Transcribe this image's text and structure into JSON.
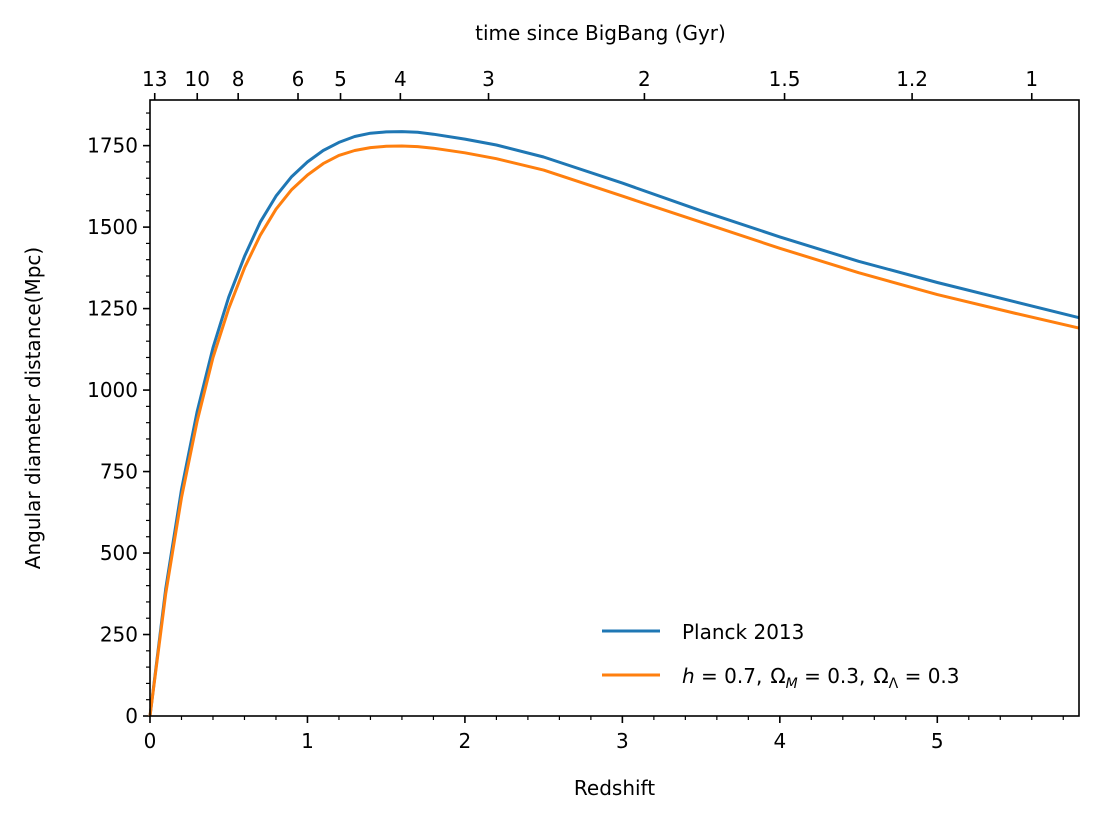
{
  "chart_data": {
    "type": "line",
    "title": "",
    "xlabel": "Redshift",
    "ylabel": "Angular diameter distance(Mpc)",
    "top_xlabel": "time since BigBang (Gyr)",
    "xlim": [
      0,
      5.9
    ],
    "ylim": [
      0,
      1890
    ],
    "x_ticks": [
      0,
      1,
      2,
      3,
      4,
      5
    ],
    "y_ticks": [
      0,
      250,
      500,
      750,
      1000,
      1250,
      1500,
      1750
    ],
    "top_ticks": [
      {
        "label": "13",
        "z": 0.03
      },
      {
        "label": "10",
        "z": 0.3
      },
      {
        "label": "8",
        "z": 0.56
      },
      {
        "label": "6",
        "z": 0.94
      },
      {
        "label": "5",
        "z": 1.21
      },
      {
        "label": "4",
        "z": 1.59
      },
      {
        "label": "3",
        "z": 2.15
      },
      {
        "label": "2",
        "z": 3.14
      },
      {
        "label": "1.5",
        "z": 4.03
      },
      {
        "label": "1.2",
        "z": 4.84
      },
      {
        "label": "1",
        "z": 5.6
      }
    ],
    "legend_position": "lower-right",
    "series": [
      {
        "name": "Planck 2013",
        "color": "#1f77b4",
        "x": [
          0,
          0.1,
          0.2,
          0.3,
          0.4,
          0.5,
          0.6,
          0.7,
          0.8,
          0.9,
          1.0,
          1.1,
          1.2,
          1.3,
          1.4,
          1.5,
          1.6,
          1.7,
          1.8,
          2.0,
          2.2,
          2.5,
          3.0,
          3.5,
          4.0,
          4.5,
          5.0,
          5.5,
          5.9
        ],
        "y": [
          0,
          390,
          695,
          935,
          1130,
          1285,
          1410,
          1515,
          1595,
          1655,
          1700,
          1735,
          1760,
          1778,
          1788,
          1792,
          1793,
          1791,
          1785,
          1770,
          1752,
          1715,
          1635,
          1550,
          1470,
          1395,
          1330,
          1270,
          1222
        ]
      },
      {
        "name": "$h=0.7,\\ \\Omega_M=0.3,\\ \\Omega_\\Lambda=0.3$",
        "color": "#ff7f0e",
        "x": [
          0,
          0.1,
          0.2,
          0.3,
          0.4,
          0.5,
          0.6,
          0.7,
          0.8,
          0.9,
          1.0,
          1.1,
          1.2,
          1.3,
          1.4,
          1.5,
          1.6,
          1.7,
          1.8,
          2.0,
          2.2,
          2.5,
          3.0,
          3.5,
          4.0,
          4.5,
          5.0,
          5.5,
          5.9
        ],
        "y": [
          0,
          375,
          670,
          905,
          1100,
          1250,
          1375,
          1475,
          1555,
          1615,
          1660,
          1695,
          1720,
          1735,
          1744,
          1748,
          1749,
          1747,
          1742,
          1728,
          1710,
          1675,
          1595,
          1515,
          1435,
          1360,
          1293,
          1235,
          1190
        ]
      }
    ],
    "legend_labels": {
      "planck": "Planck 2013",
      "h_sym": "h",
      "h_val": " = 0.7,",
      "om_sym": "Ω",
      "om_sub": "M",
      "om_val": " = 0.3,",
      "ol_sym": "Ω",
      "ol_sub": "Λ",
      "ol_val": " = 0.3"
    }
  }
}
